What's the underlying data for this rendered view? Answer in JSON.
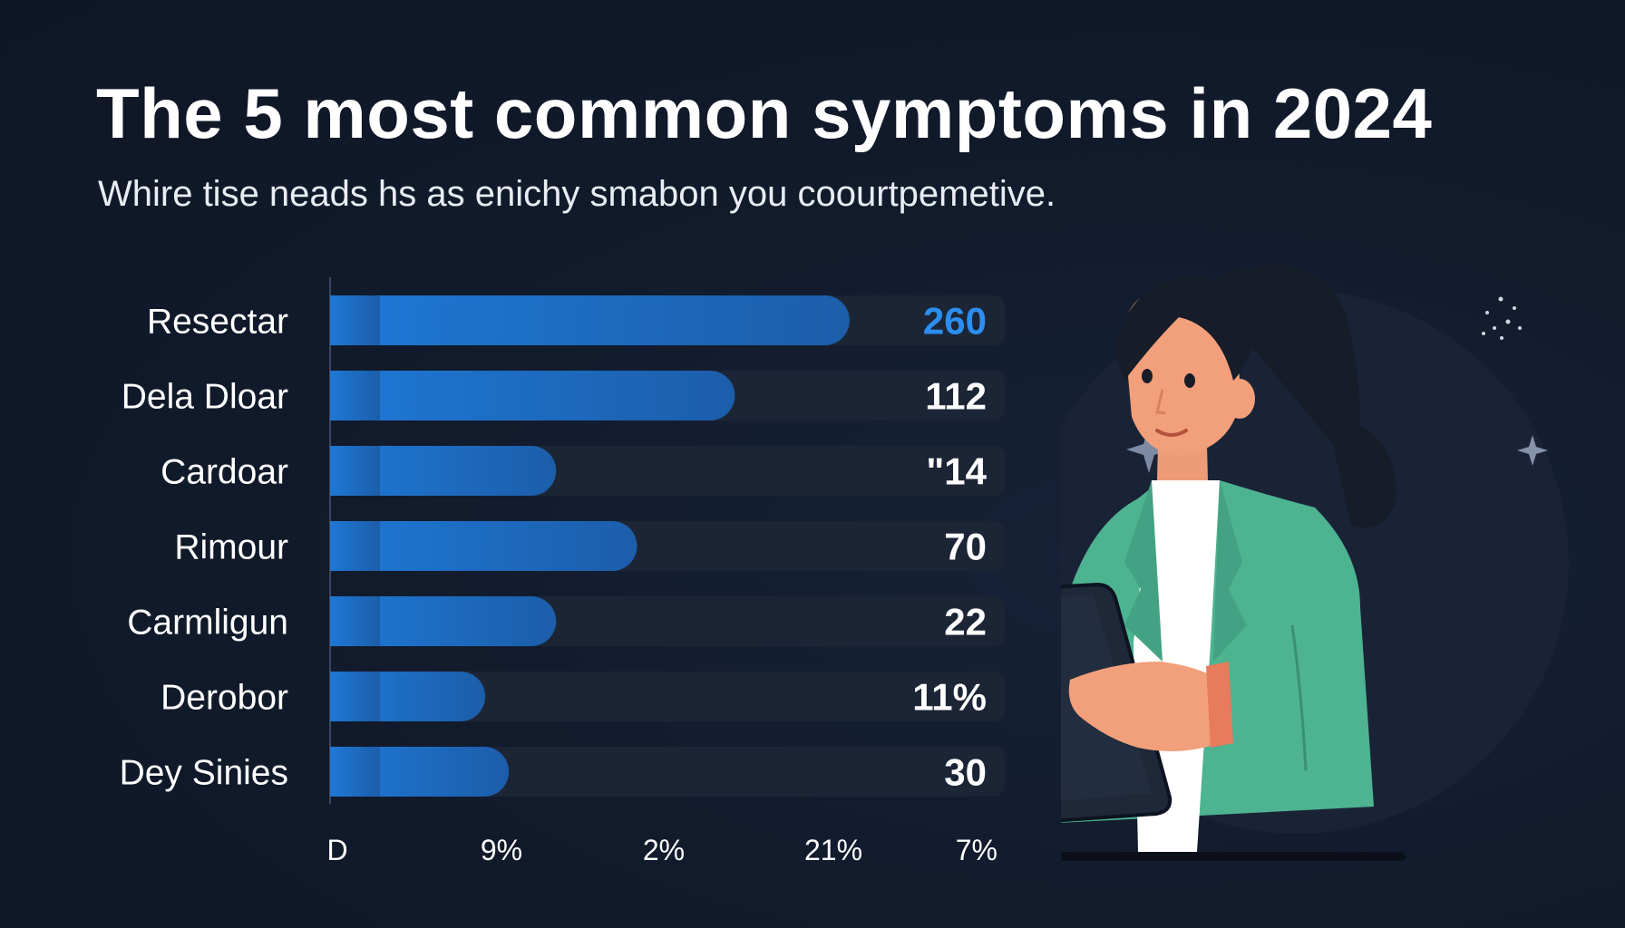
{
  "header": {
    "title": "The 5 most common symptoms in 2024",
    "subtitle": "Whire tise neads hs as enichy smabon you coourtpemetive."
  },
  "colors": {
    "background": "#121a2b",
    "bar_fill": "#1f6fc4",
    "bar_track": "#1c2536",
    "highlight_value": "#2b8ef0",
    "text": "#ffffff"
  },
  "chart_data": {
    "type": "bar",
    "orientation": "horizontal",
    "title": "The 5 most common symptoms in 2024",
    "subtitle": "Whire tise neads hs as enichy smabon you coourtpemetive.",
    "categories": [
      "Resectar",
      "Dela Dloar",
      "Cardoar",
      "Rimour",
      "Carmligun",
      "Derobor",
      "Dey Sinies"
    ],
    "values": [
      260,
      112,
      14,
      70,
      22,
      11,
      30
    ],
    "value_labels": [
      "260",
      "112",
      "\"14",
      "70",
      "22",
      "11%",
      "30"
    ],
    "bar_fraction": [
      0.77,
      0.6,
      0.335,
      0.455,
      0.335,
      0.23,
      0.265
    ],
    "x_tick_labels": [
      "D",
      "9%",
      "2%",
      "21%",
      "7%"
    ],
    "highlight_index": 0,
    "grid": false
  },
  "illustration": {
    "subject": "person-holding-tablet",
    "jacket_color": "#4db391",
    "skin_color": "#f2a07b",
    "hair_color": "#161c28"
  }
}
